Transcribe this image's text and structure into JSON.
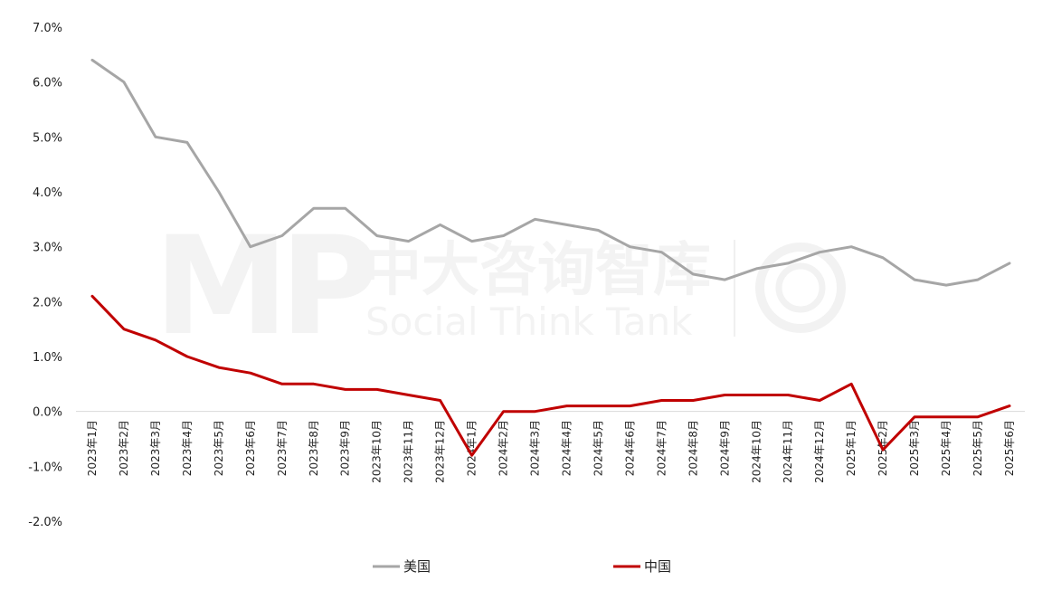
{
  "chart_data": {
    "type": "line",
    "x": [
      "2023年1月",
      "2023年2月",
      "2023年3月",
      "2023年4月",
      "2023年5月",
      "2023年6月",
      "2023年7月",
      "2023年8月",
      "2023年9月",
      "2023年10月",
      "2023年11月",
      "2023年12月",
      "2024年1月",
      "2024年2月",
      "2024年3月",
      "2024年4月",
      "2024年5月",
      "2024年6月",
      "2024年7月",
      "2024年8月",
      "2024年9月",
      "2024年10月",
      "2024年11月",
      "2024年12月",
      "2025年1月",
      "2025年2月",
      "2025年3月",
      "2025年4月",
      "2025年5月",
      "2025年6月"
    ],
    "series": [
      {
        "name": "美国",
        "color": "#a6a6a6",
        "values": [
          6.4,
          6.0,
          5.0,
          4.9,
          4.0,
          3.0,
          3.2,
          3.7,
          3.7,
          3.2,
          3.1,
          3.4,
          3.1,
          3.2,
          3.5,
          3.4,
          3.3,
          3.0,
          2.9,
          2.5,
          2.4,
          2.6,
          2.7,
          2.9,
          3.0,
          2.8,
          2.4,
          2.3,
          2.4,
          2.7
        ]
      },
      {
        "name": "中国",
        "color": "#c00000",
        "values": [
          2.1,
          1.5,
          1.3,
          1.0,
          0.8,
          0.7,
          0.5,
          0.5,
          0.4,
          0.4,
          0.3,
          0.2,
          -0.8,
          0.0,
          0.0,
          0.1,
          0.1,
          0.1,
          0.2,
          0.2,
          0.3,
          0.3,
          0.3,
          0.2,
          0.5,
          -0.7,
          -0.1,
          -0.1,
          -0.1,
          0.1
        ]
      }
    ],
    "yticks": [
      "7.0%",
      "6.0%",
      "5.0%",
      "4.0%",
      "3.0%",
      "2.0%",
      "1.0%",
      "0.0%",
      "-1.0%",
      "-2.0%"
    ],
    "ylim": [
      -2.0,
      7.0
    ],
    "grid": false,
    "legend": "bottom"
  },
  "watermark": {
    "logo": "MP",
    "cn": "中大咨询智库",
    "en": "Social Think Tank"
  }
}
